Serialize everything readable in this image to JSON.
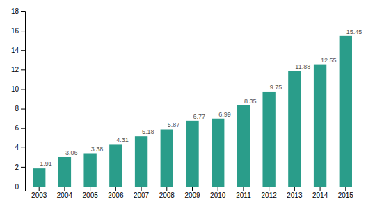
{
  "chart_data": {
    "type": "bar",
    "categories": [
      "2003",
      "2004",
      "2005",
      "2006",
      "2007",
      "2008",
      "2009",
      "2010",
      "2011",
      "2012",
      "2013",
      "2014",
      "2015"
    ],
    "values": [
      1.91,
      3.06,
      3.38,
      4.31,
      5.18,
      5.87,
      6.77,
      6.99,
      8.35,
      9.75,
      11.88,
      12.55,
      15.45
    ],
    "color": "#2a9d8a",
    "ylim": [
      0,
      18
    ],
    "yticks": [
      0,
      2,
      4,
      6,
      8,
      10,
      12,
      14,
      16,
      18
    ],
    "data_labels": true,
    "grid": false
  }
}
